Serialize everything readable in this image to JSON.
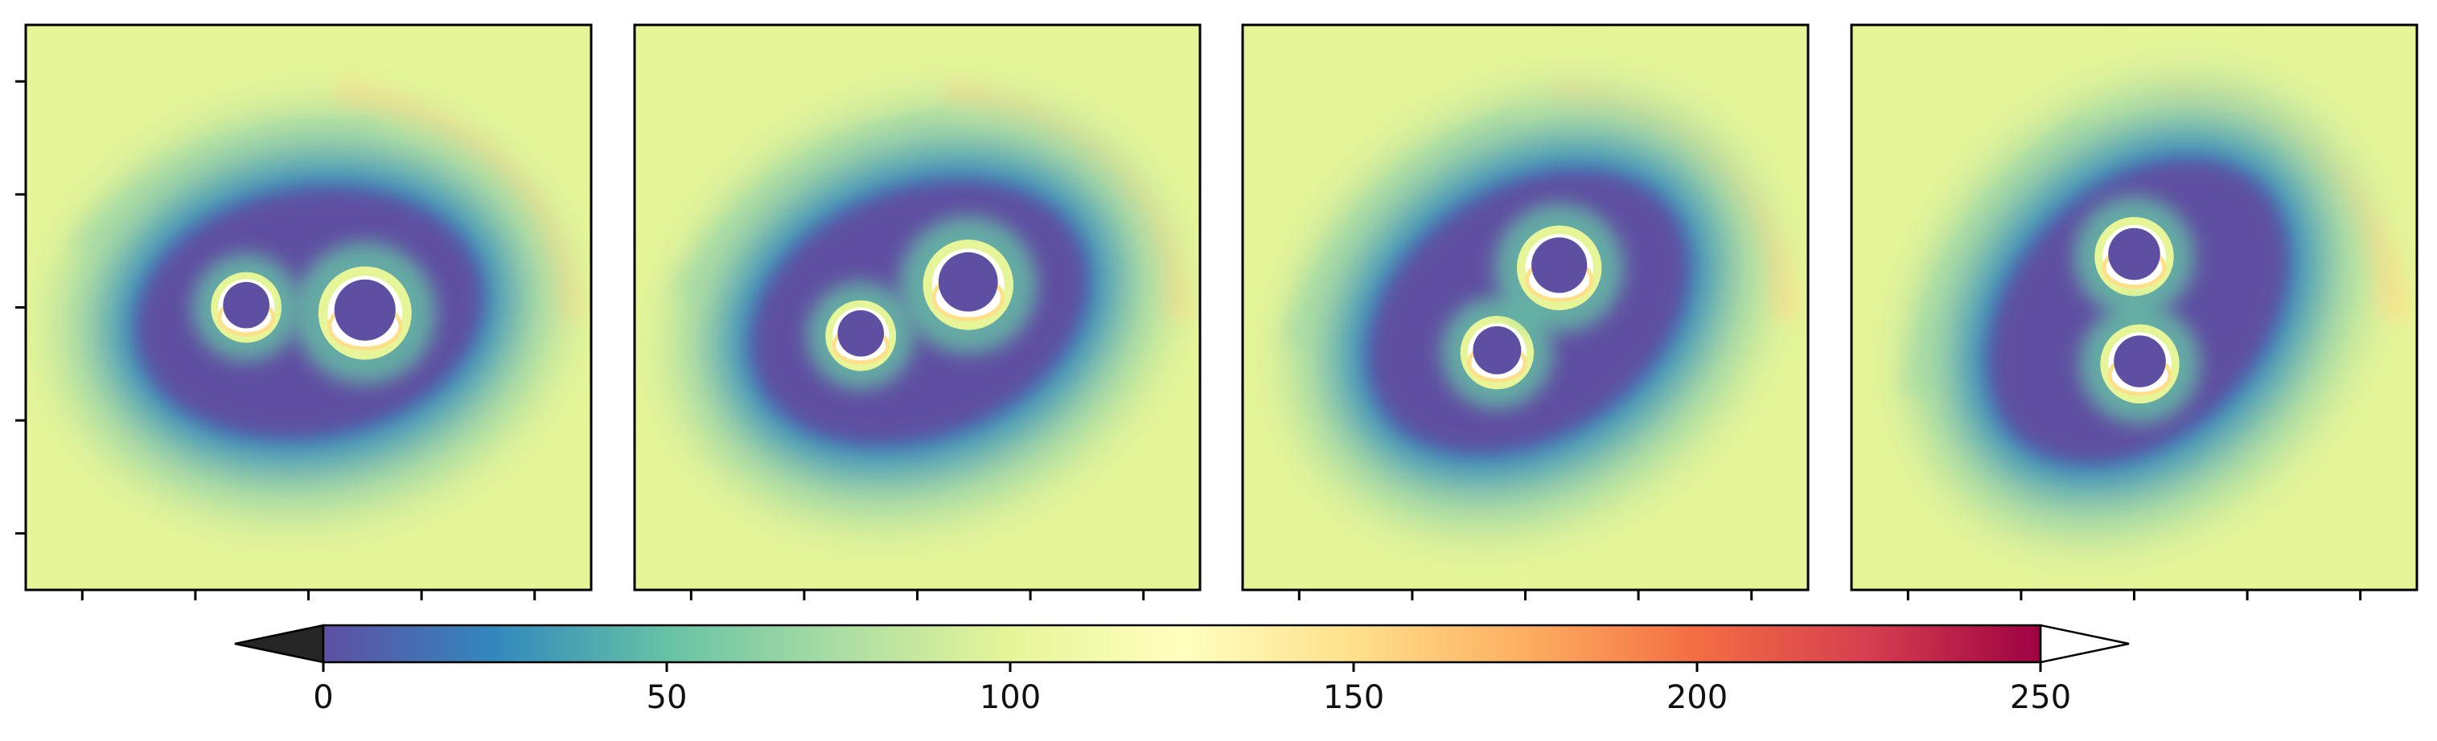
{
  "chart_data": {
    "type": "heatmap",
    "colormap": "Spectral_r",
    "panels": [
      {
        "bh": [
          {
            "u": 0.39,
            "v": 0.5,
            "r": 0.05
          },
          {
            "u": 0.6,
            "v": 0.51,
            "r": 0.066
          }
        ]
      },
      {
        "bh": [
          {
            "u": 0.4,
            "v": 0.55,
            "r": 0.05
          },
          {
            "u": 0.59,
            "v": 0.46,
            "r": 0.064
          }
        ]
      },
      {
        "bh": [
          {
            "u": 0.45,
            "v": 0.58,
            "r": 0.052
          },
          {
            "u": 0.56,
            "v": 0.43,
            "r": 0.06
          }
        ]
      },
      {
        "bh": [
          {
            "u": 0.5,
            "v": 0.41,
            "r": 0.056
          },
          {
            "u": 0.51,
            "v": 0.6,
            "r": 0.056
          }
        ]
      }
    ],
    "colorbar": {
      "range": [
        0,
        250
      ],
      "ticks": [
        0,
        50,
        100,
        150,
        200,
        250
      ],
      "tick_labels": [
        "0",
        "50",
        "100",
        "150",
        "200",
        "250"
      ],
      "extend": "both",
      "under_color": "#262626",
      "over_color": "#ffffff",
      "stops": [
        "#5e4fa2",
        "#3288bd",
        "#66c2a5",
        "#abdda4",
        "#e6f598",
        "#ffffbf",
        "#fee08b",
        "#fdae61",
        "#f46d43",
        "#d53e4f",
        "#9e0142"
      ]
    }
  }
}
